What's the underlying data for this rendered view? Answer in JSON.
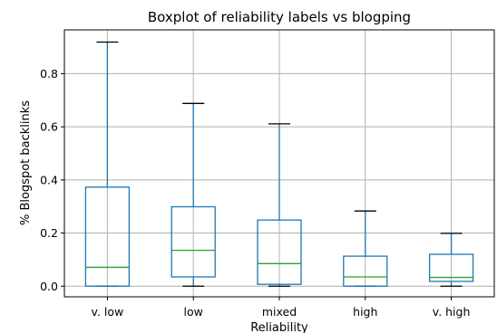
{
  "chart_data": {
    "type": "boxplot",
    "title": "Boxplot of reliability labels vs blogping",
    "xlabel": "Reliability",
    "ylabel": "% Blogspot backlinks",
    "ylim": [
      -0.04,
      0.965
    ],
    "yticks": [
      "0.0",
      "0.2",
      "0.4",
      "0.6",
      "0.8"
    ],
    "grid": true,
    "colors": {
      "box": "#1f77b4",
      "median": "#2ca02c",
      "cap": "#000000"
    },
    "categories": [
      "v. low",
      "low",
      "mixed",
      "high",
      "v. high"
    ],
    "boxes": [
      {
        "category": "v. low",
        "whisker_low": 0.0,
        "q1": 0.0,
        "median": 0.071,
        "q3": 0.373,
        "whisker_high": 0.919
      },
      {
        "category": "low",
        "whisker_low": 0.0,
        "q1": 0.035,
        "median": 0.135,
        "q3": 0.299,
        "whisker_high": 0.688
      },
      {
        "category": "mixed",
        "whisker_low": 0.0,
        "q1": 0.007,
        "median": 0.085,
        "q3": 0.249,
        "whisker_high": 0.611
      },
      {
        "category": "high",
        "whisker_low": 0.0,
        "q1": 0.0,
        "median": 0.035,
        "q3": 0.113,
        "whisker_high": 0.283
      },
      {
        "category": "v. high",
        "whisker_low": 0.0,
        "q1": 0.018,
        "median": 0.033,
        "q3": 0.12,
        "whisker_high": 0.199
      }
    ]
  }
}
